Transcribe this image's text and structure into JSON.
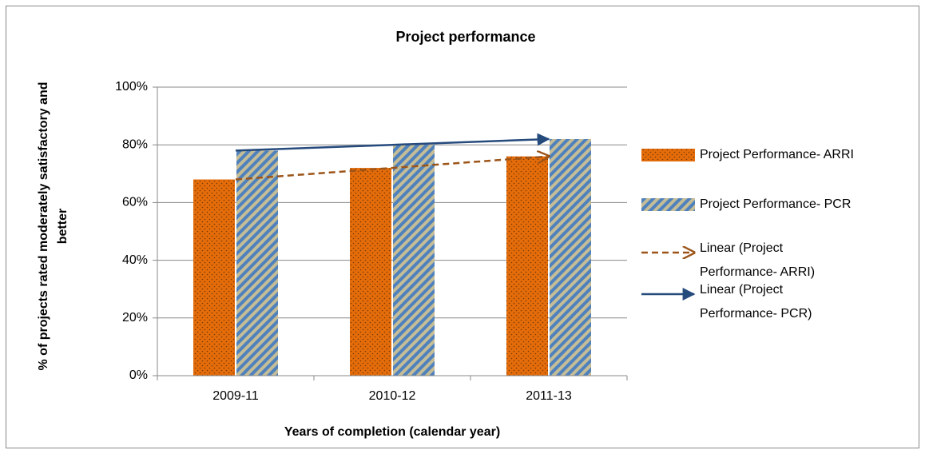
{
  "chart_data": {
    "type": "bar",
    "title": "Project performance",
    "x_label": "Years of completion (calendar year)",
    "y_label": "% of projects rated moderately satisfactory and better",
    "categories": [
      "2009-11",
      "2010-12",
      "2011-13"
    ],
    "series": [
      {
        "name": "Project Performance- ARRI",
        "color": "#e46c0a",
        "values": [
          68,
          72,
          76
        ]
      },
      {
        "name": "Project Performance- PCR",
        "color": "#4f81bd",
        "values": [
          78,
          80,
          82
        ]
      }
    ],
    "trendlines": [
      {
        "name": "Linear (Project Performance- ARRI)",
        "color": "#9c5418",
        "dashed": true,
        "values": [
          68,
          72,
          76
        ]
      },
      {
        "name": "Linear (Project Performance- PCR)",
        "color": "#254a7c",
        "dashed": false,
        "values": [
          78,
          80,
          82
        ]
      }
    ],
    "ylim": [
      0,
      100
    ],
    "yticks": [
      {
        "value": 0,
        "label": "0%"
      },
      {
        "value": 20,
        "label": "20%"
      },
      {
        "value": 40,
        "label": "40%"
      },
      {
        "value": 60,
        "label": "60%"
      },
      {
        "value": 80,
        "label": "80%"
      },
      {
        "value": 100,
        "label": "100%"
      }
    ],
    "grid": true,
    "legend": "right"
  }
}
